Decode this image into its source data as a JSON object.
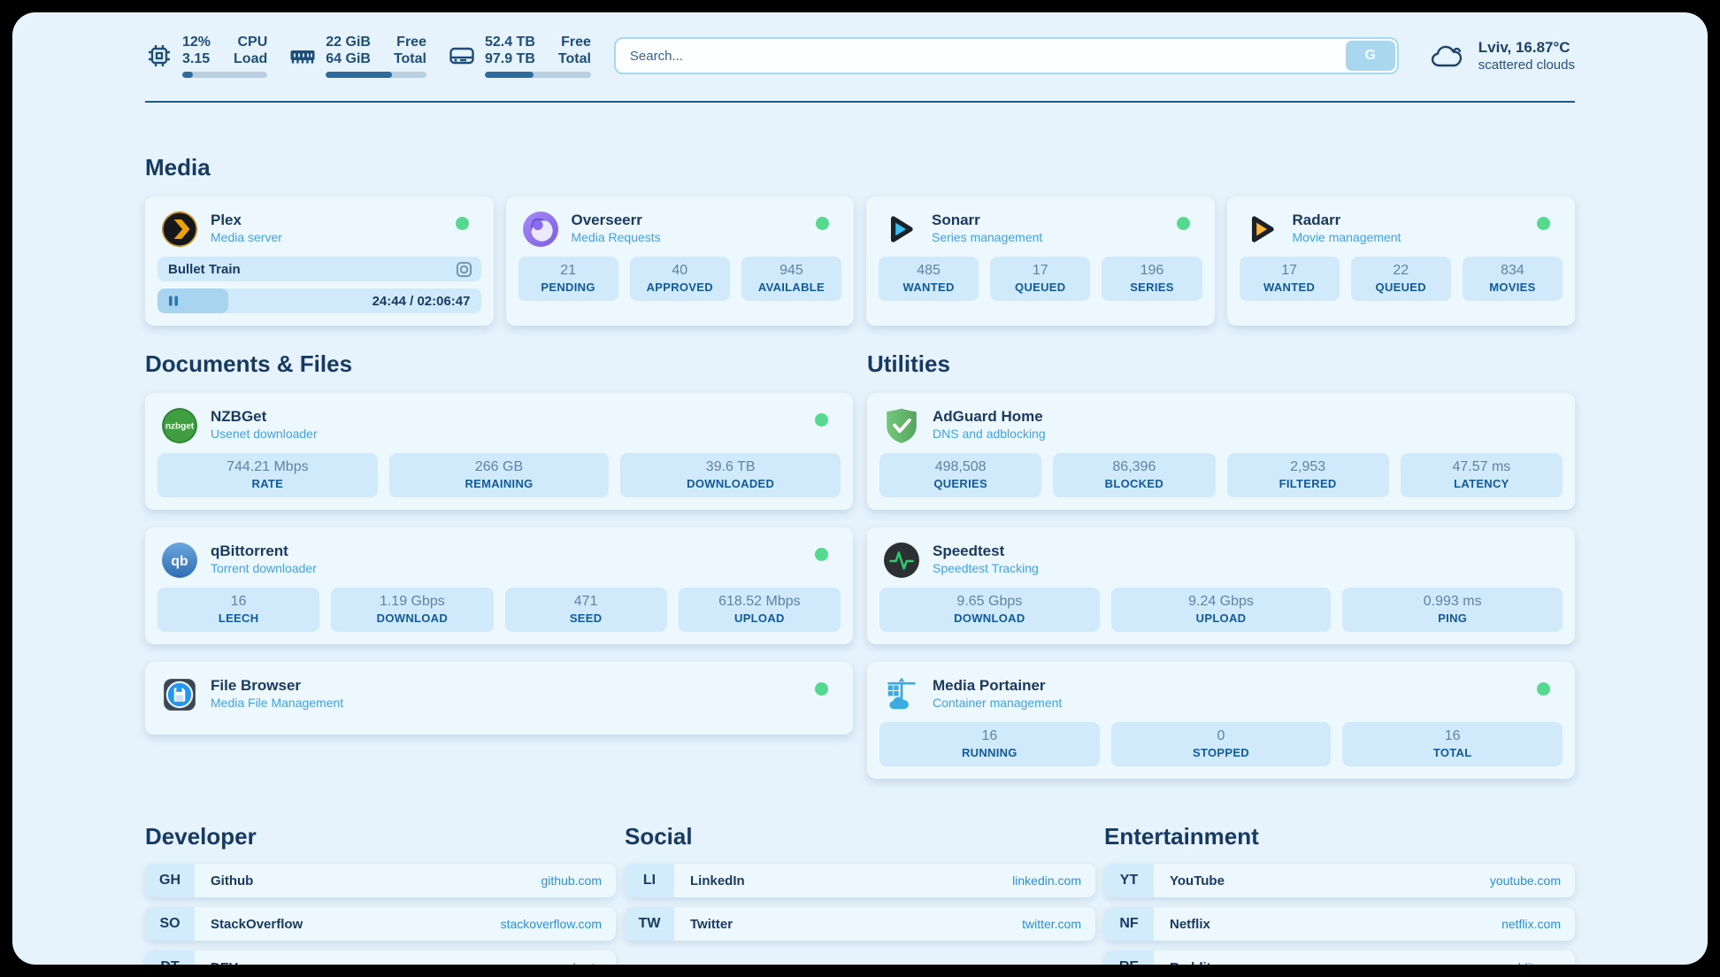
{
  "topbar": {
    "cpu": {
      "value_line1": "12%",
      "value_line2": "3.15",
      "label_line1": "CPU",
      "label_line2": "Load",
      "percent": 12
    },
    "memory": {
      "value_line1": "22 GiB",
      "value_line2": "64 GiB",
      "label_line1": "Free",
      "label_line2": "Total",
      "percent": 66
    },
    "storage": {
      "value_line1": "52.4 TB",
      "value_line2": "97.9 TB",
      "label_line1": "Free",
      "label_line2": "Total",
      "percent": 46
    },
    "search": {
      "placeholder": "Search...",
      "button_label": "G"
    },
    "weather": {
      "headline": "Lviv, 16.87°C",
      "condition": "scattered clouds"
    }
  },
  "sections": {
    "media": {
      "title": "Media",
      "apps": [
        {
          "name": "Plex",
          "description": "Media server",
          "icon": "plex",
          "online": true,
          "now_playing": {
            "title": "Bullet Train",
            "time_display": "24:44 / 02:06:47",
            "progress_percent": 19
          }
        },
        {
          "name": "Overseerr",
          "description": "Media Requests",
          "icon": "overseerr",
          "online": true,
          "stats": [
            {
              "value": "21",
              "label": "PENDING"
            },
            {
              "value": "40",
              "label": "APPROVED"
            },
            {
              "value": "945",
              "label": "AVAILABLE"
            }
          ]
        },
        {
          "name": "Sonarr",
          "description": "Series management",
          "icon": "sonarr",
          "online": true,
          "stats": [
            {
              "value": "485",
              "label": "WANTED"
            },
            {
              "value": "17",
              "label": "QUEUED"
            },
            {
              "value": "196",
              "label": "SERIES"
            }
          ]
        },
        {
          "name": "Radarr",
          "description": "Movie management",
          "icon": "radarr",
          "online": true,
          "stats": [
            {
              "value": "17",
              "label": "WANTED"
            },
            {
              "value": "22",
              "label": "QUEUED"
            },
            {
              "value": "834",
              "label": "MOVIES"
            }
          ]
        }
      ]
    },
    "documents": {
      "title": "Documents & Files",
      "apps": [
        {
          "name": "NZBGet",
          "description": "Usenet downloader",
          "icon": "nzbget",
          "online": true,
          "stats": [
            {
              "value": "744.21 Mbps",
              "label": "RATE"
            },
            {
              "value": "266 GB",
              "label": "REMAINING"
            },
            {
              "value": "39.6 TB",
              "label": "DOWNLOADED"
            }
          ]
        },
        {
          "name": "qBittorrent",
          "description": "Torrent downloader",
          "icon": "qbittorrent",
          "online": true,
          "stats": [
            {
              "value": "16",
              "label": "LEECH"
            },
            {
              "value": "1.19 Gbps",
              "label": "DOWNLOAD"
            },
            {
              "value": "471",
              "label": "SEED"
            },
            {
              "value": "618.52 Mbps",
              "label": "UPLOAD"
            }
          ]
        },
        {
          "name": "File Browser",
          "description": "Media File Management",
          "icon": "filebrowser",
          "online": true
        }
      ]
    },
    "utilities": {
      "title": "Utilities",
      "apps": [
        {
          "name": "AdGuard Home",
          "description": "DNS and adblocking",
          "icon": "adguard",
          "online": false,
          "stats": [
            {
              "value": "498,508",
              "label": "QUERIES"
            },
            {
              "value": "86,396",
              "label": "BLOCKED"
            },
            {
              "value": "2,953",
              "label": "FILTERED"
            },
            {
              "value": "47.57 ms",
              "label": "LATENCY"
            }
          ]
        },
        {
          "name": "Speedtest",
          "description": "Speedtest Tracking",
          "icon": "speedtest",
          "online": false,
          "stats": [
            {
              "value": "9.65 Gbps",
              "label": "DOWNLOAD"
            },
            {
              "value": "9.24 Gbps",
              "label": "UPLOAD"
            },
            {
              "value": "0.993 ms",
              "label": "PING"
            }
          ]
        },
        {
          "name": "Media Portainer",
          "description": "Container management",
          "icon": "portainer",
          "online": true,
          "stats": [
            {
              "value": "16",
              "label": "RUNNING"
            },
            {
              "value": "0",
              "label": "STOPPED"
            },
            {
              "value": "16",
              "label": "TOTAL"
            }
          ]
        }
      ]
    }
  },
  "bookmarks": [
    {
      "title": "Developer",
      "links": [
        {
          "abbr": "GH",
          "name": "Github",
          "url": "github.com"
        },
        {
          "abbr": "SO",
          "name": "StackOverflow",
          "url": "stackoverflow.com"
        },
        {
          "abbr": "DT",
          "name": "DEV",
          "url": "dev.to"
        }
      ]
    },
    {
      "title": "Social",
      "links": [
        {
          "abbr": "LI",
          "name": "LinkedIn",
          "url": "linkedin.com"
        },
        {
          "abbr": "TW",
          "name": "Twitter",
          "url": "twitter.com"
        }
      ]
    },
    {
      "title": "Entertainment",
      "links": [
        {
          "abbr": "YT",
          "name": "YouTube",
          "url": "youtube.com"
        },
        {
          "abbr": "NF",
          "name": "Netflix",
          "url": "netflix.com"
        },
        {
          "abbr": "RE",
          "name": "Reddit",
          "url": "reddit.com"
        }
      ]
    }
  ],
  "colors": {
    "page_bg": "#e7f3fc",
    "card_bg": "#ecf7fe",
    "box_bg": "#d0eafb",
    "navy": "#1b3a60",
    "label_blue": "#12599a",
    "subtitle_blue": "#44a1e4",
    "link_blue": "#2c8fd8",
    "status_green": "#55d98e",
    "bar_fill": "#2d6b9d"
  }
}
